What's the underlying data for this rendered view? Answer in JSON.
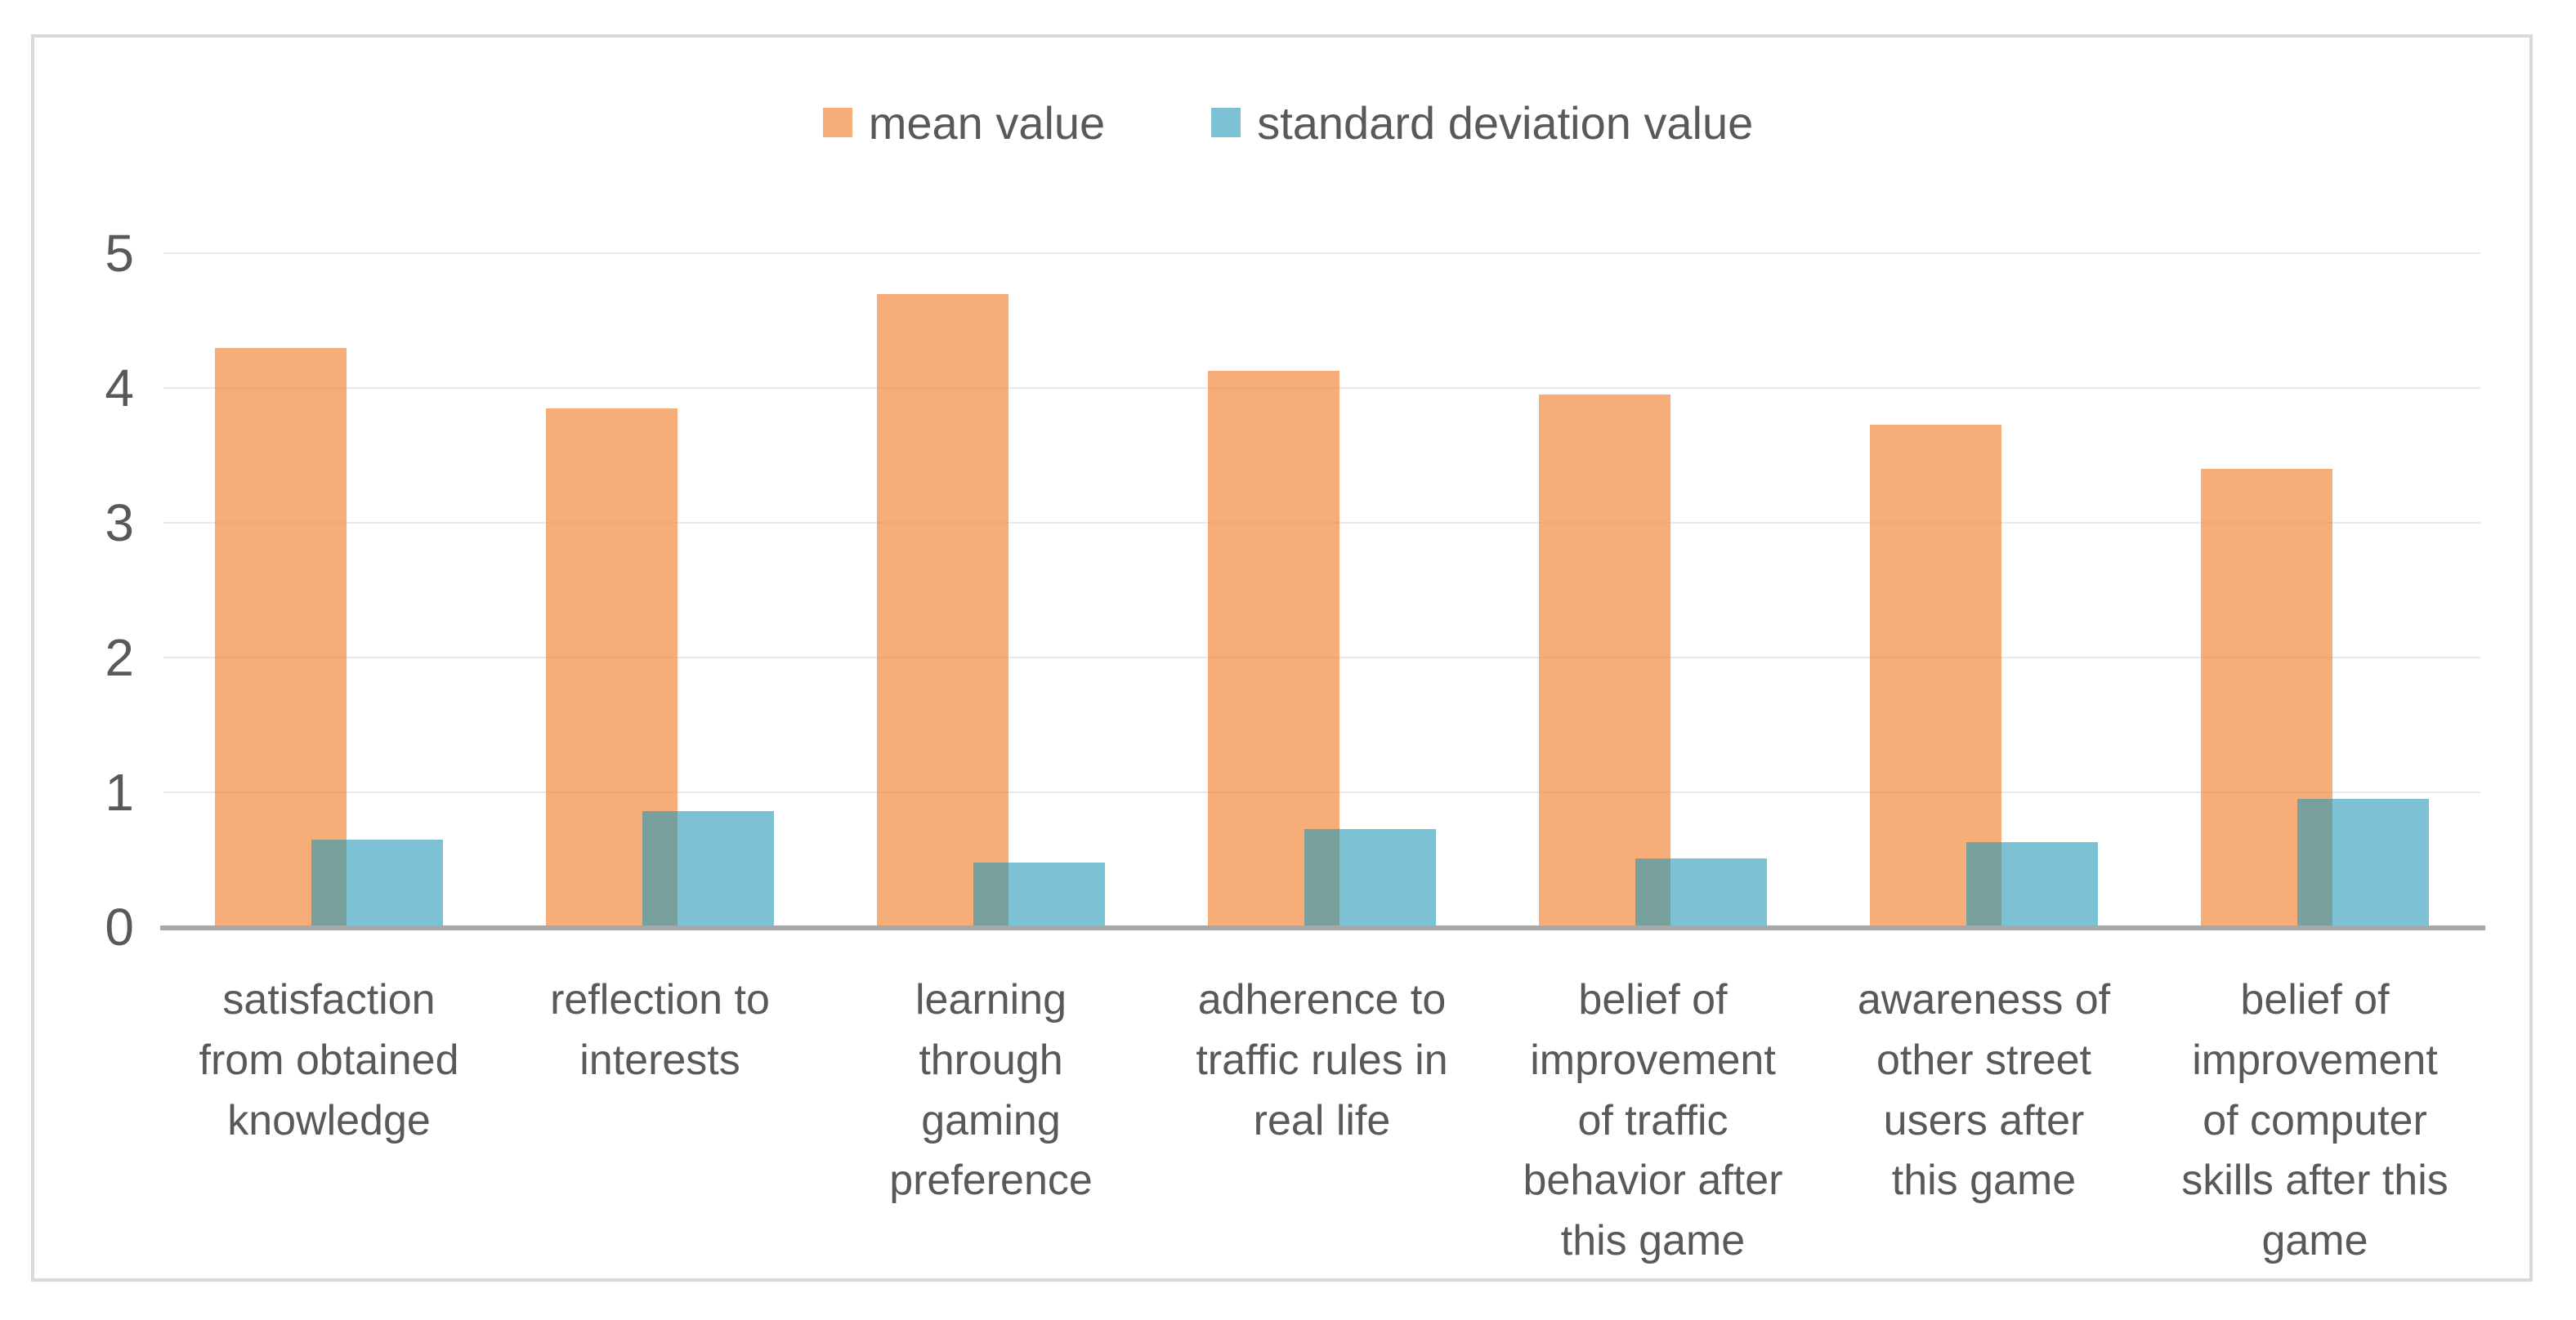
{
  "chart_data": {
    "type": "bar",
    "title": "",
    "xlabel": "",
    "ylabel": "",
    "categories": [
      "satisfaction from obtained knowledge",
      "reflection to interests",
      "learning through gaming preference",
      "adherence to traffic rules in real life",
      "belief of improvement of traffic behavior after this game",
      "awareness of other street users after this game",
      "belief of improvement of computer skills after this game"
    ],
    "x_labels_display": [
      "satisfaction\nfrom obtained\nknowledge",
      "reflection to\ninterests",
      "learning\nthrough\ngaming\npreference",
      "adherence to\ntraffic rules in\nreal life",
      "belief of\nimprovement\nof traffic\nbehavior after\nthis game",
      "awareness of\nother street\nusers after\nthis game",
      "belief of\nimprovement\nof computer\nskills after this\ngame"
    ],
    "series": [
      {
        "name": "mean value",
        "color": "#F28E43",
        "opacity": 0.72,
        "values": [
          4.3,
          3.85,
          4.7,
          4.13,
          3.95,
          3.73,
          3.4
        ]
      },
      {
        "name": "standard deviation value",
        "color": "#2498B7",
        "opacity": 0.6,
        "values": [
          0.65,
          0.86,
          0.48,
          0.73,
          0.51,
          0.63,
          0.95
        ]
      }
    ],
    "ylim": [
      0,
      5
    ],
    "yticks": [
      "0",
      "1",
      "2",
      "3",
      "4",
      "5"
    ],
    "grid": true,
    "legend_position": "top center"
  },
  "colors": {
    "mean_bar_rendered": "#F6AE78",
    "sd_bar_rendered": "#7BC1D3",
    "overlap_rendered": "#7AA29F",
    "gridline": "#E9E9E9",
    "axis_line": "#A8A8A8",
    "frame_border": "#D9D9D9",
    "text": "#595959",
    "background": "#FFFFFF"
  }
}
